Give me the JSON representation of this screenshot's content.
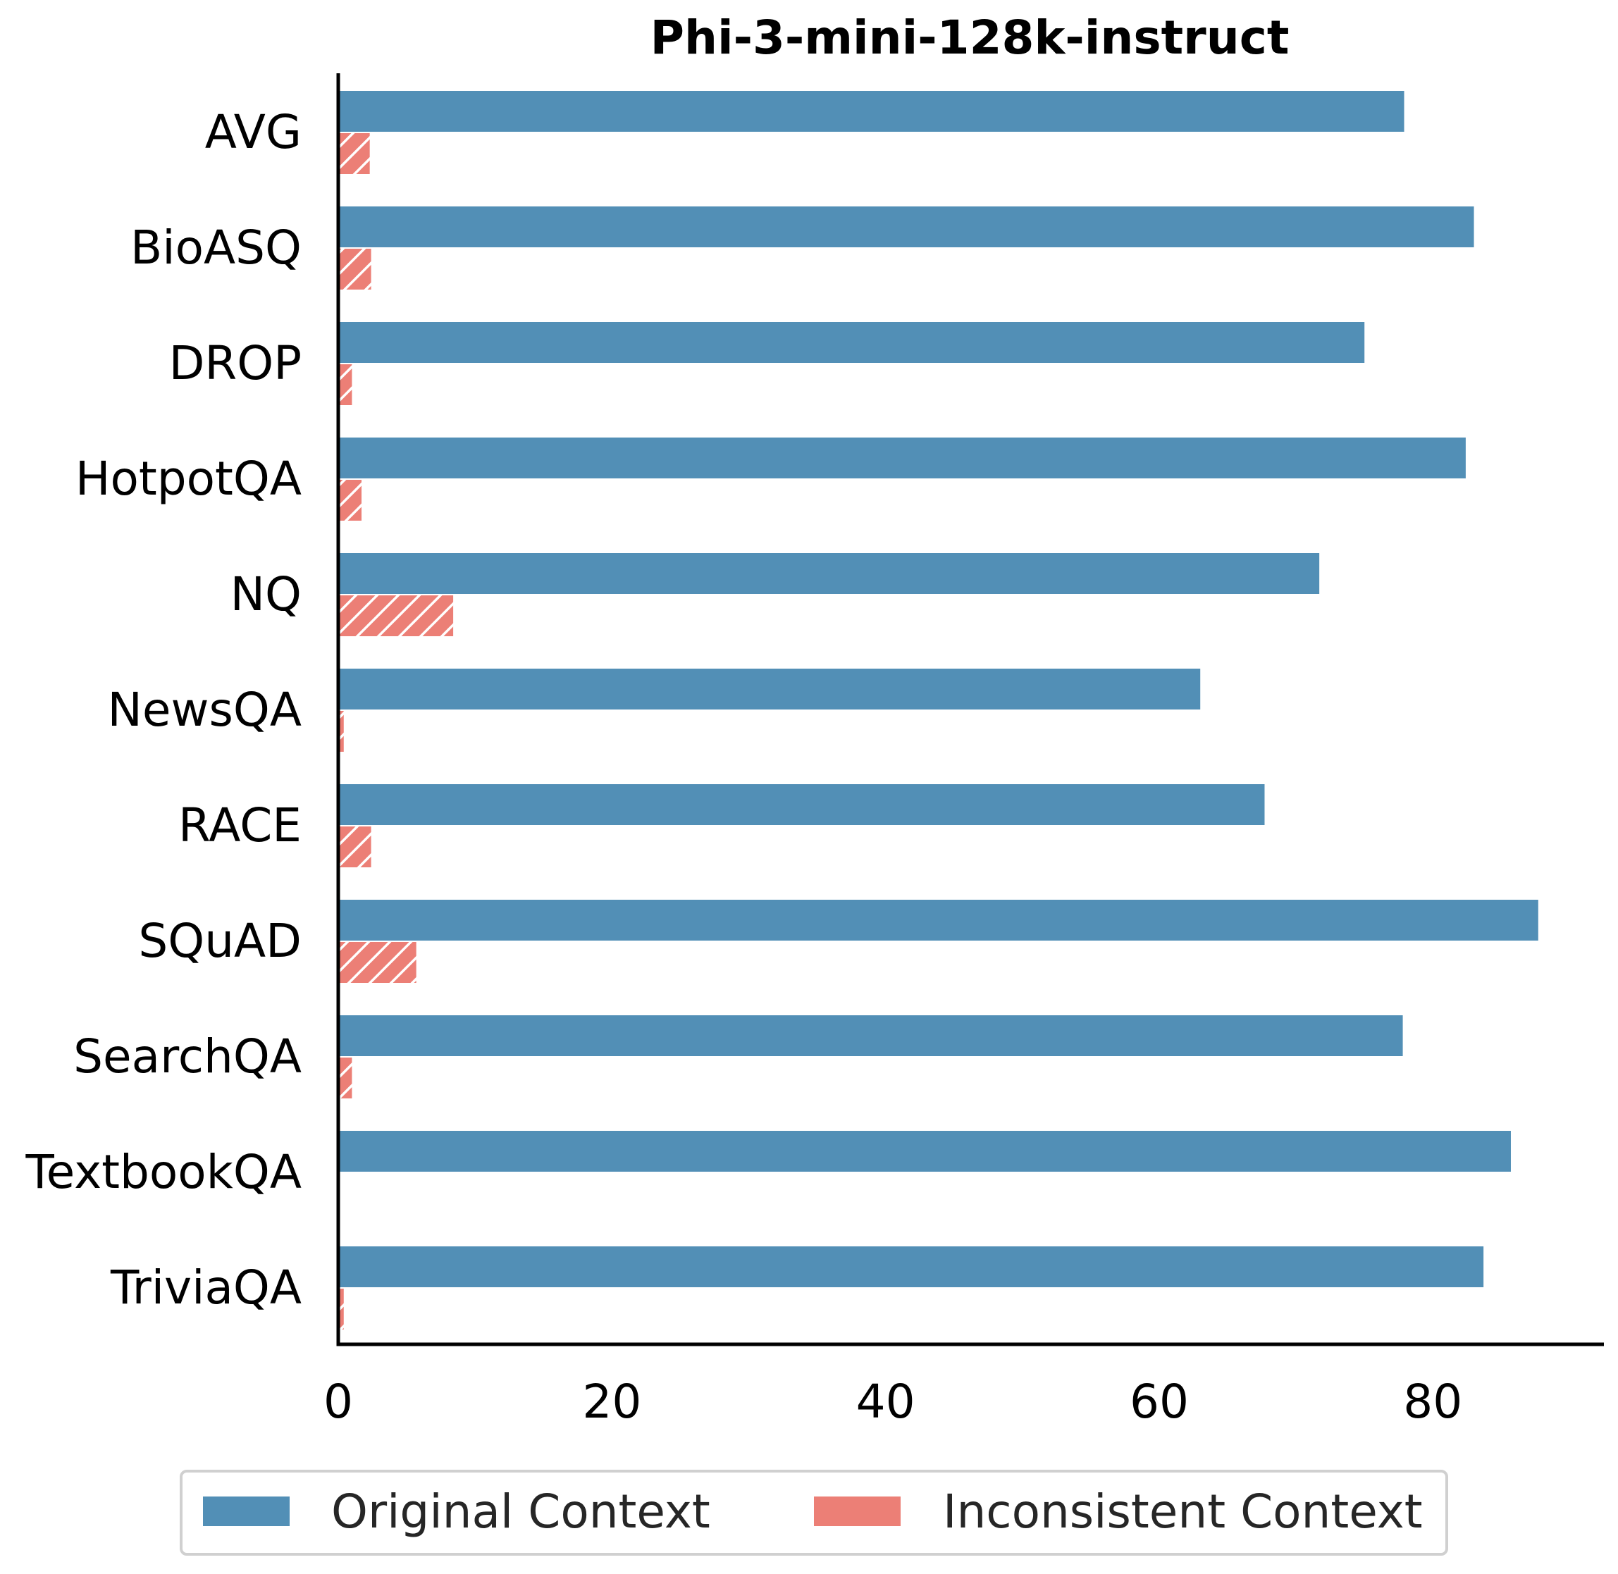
{
  "chart_data": {
    "type": "bar",
    "orientation": "horizontal",
    "title": "Phi-3-mini-128k-instruct",
    "xlabel": "",
    "ylabel": "",
    "categories": [
      "AVG",
      "BioASQ",
      "DROP",
      "HotpotQA",
      "NQ",
      "NewsQA",
      "RACE",
      "SQuAD",
      "SearchQA",
      "TextbookQA",
      "TriviaQA"
    ],
    "series": [
      {
        "name": "Original Context",
        "color": "#528fb6",
        "values": [
          77.9,
          83.0,
          75.0,
          82.4,
          71.7,
          63.0,
          67.7,
          87.7,
          77.8,
          85.7,
          83.7
        ]
      },
      {
        "name": "Inconsistent Context",
        "color": "#ec7f76",
        "hatch": "diagonal",
        "values": [
          2.3,
          2.4,
          1.0,
          1.7,
          8.4,
          0.4,
          2.4,
          5.7,
          1.0,
          0.0,
          0.4
        ]
      }
    ],
    "xlim": [
      0,
      92.5
    ],
    "xticks": [
      0,
      20,
      40,
      60,
      80
    ],
    "grid": false,
    "legend_position": "bottom-center"
  }
}
